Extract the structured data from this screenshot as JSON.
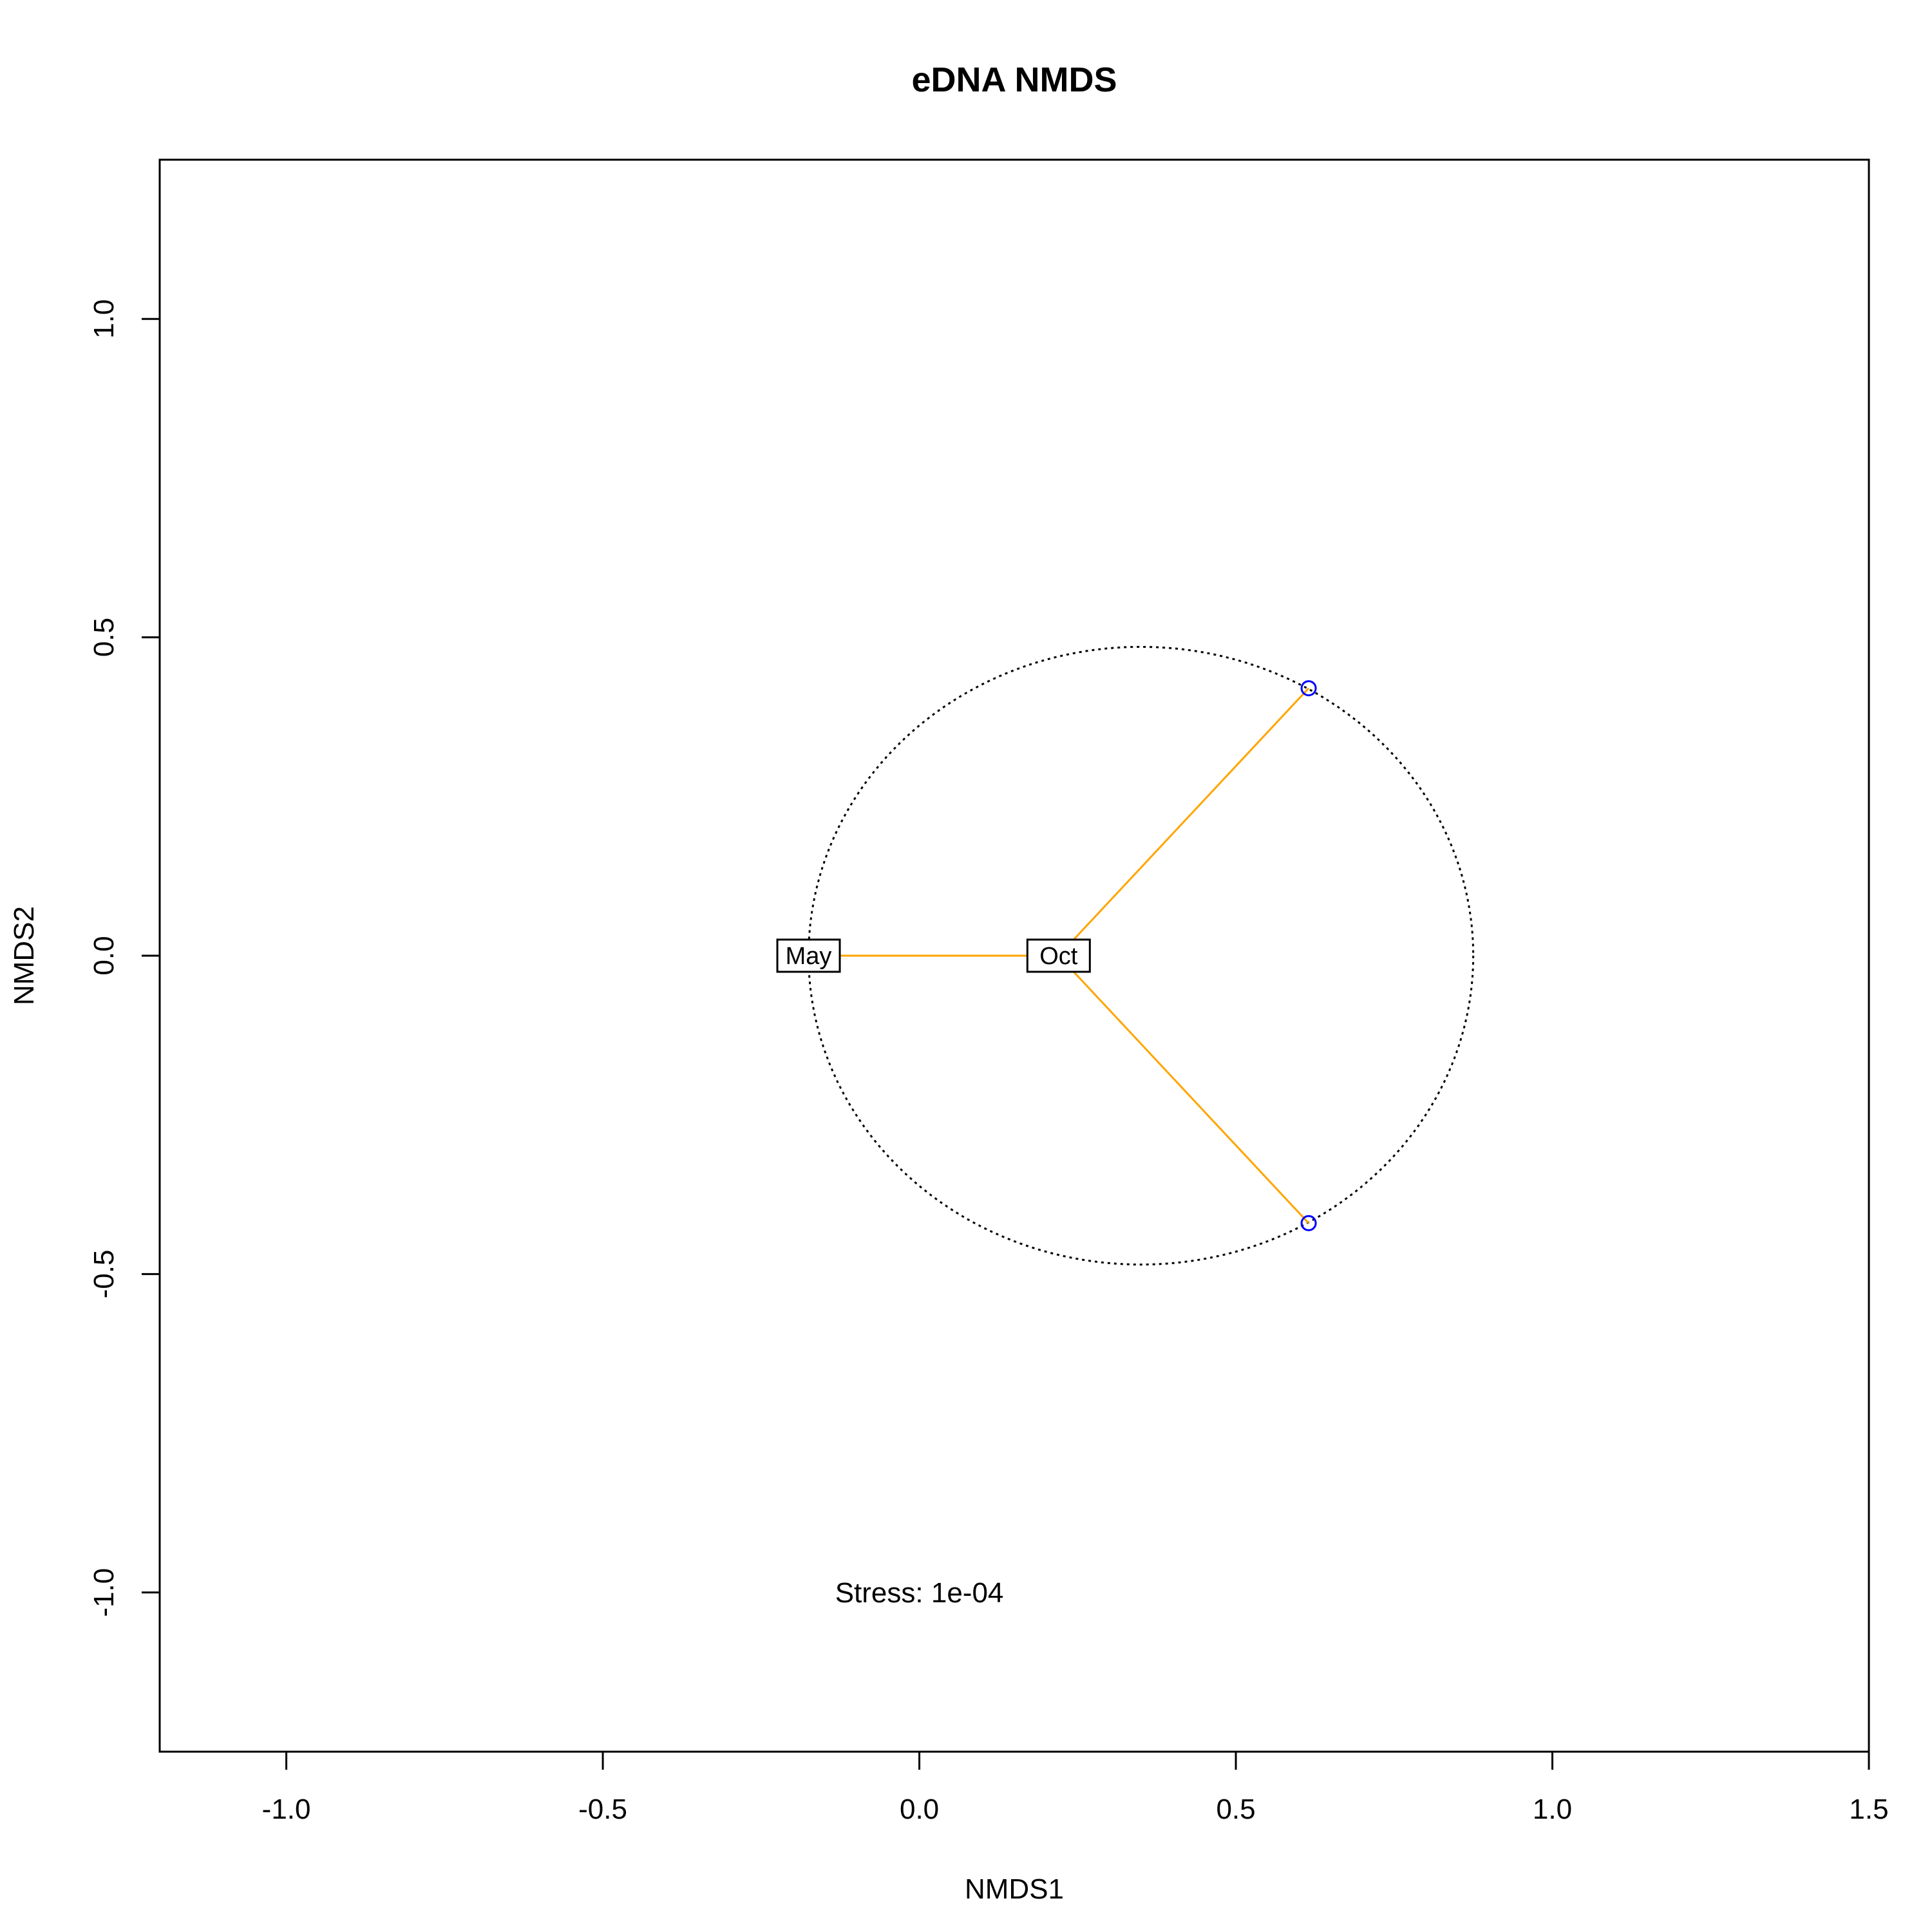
{
  "chart_data": {
    "type": "scatter",
    "title": "eDNA NMDS",
    "xlabel": "NMDS1",
    "ylabel": "NMDS2",
    "xlim": [
      -1.2,
      1.5
    ],
    "ylim": [
      -1.25,
      1.25
    ],
    "xticks": [
      -1.0,
      -0.5,
      0.0,
      0.5,
      1.0,
      1.5
    ],
    "xtick_labels": [
      "-1.0",
      "-0.5",
      "0.0",
      "0.5",
      "1.0",
      "1.5"
    ],
    "yticks": [
      -1.0,
      -0.5,
      0.0,
      0.5,
      1.0
    ],
    "ytick_labels": [
      "-1.0",
      "-0.5",
      "0.0",
      "0.5",
      "1.0"
    ],
    "grid": false,
    "points": [
      {
        "x": 0.615,
        "y": 0.42
      },
      {
        "x": 0.615,
        "y": -0.42
      }
    ],
    "point_color": "#0000ff",
    "centroids": [
      {
        "label": "May",
        "x": -0.175,
        "y": 0.0
      },
      {
        "label": "Oct",
        "x": 0.22,
        "y": 0.0
      }
    ],
    "spider_segments": [
      {
        "from": [
          -0.175,
          0.0
        ],
        "to": [
          0.22,
          0.0
        ]
      },
      {
        "from": [
          0.22,
          0.0
        ],
        "to": [
          0.615,
          0.42
        ]
      },
      {
        "from": [
          0.22,
          0.0
        ],
        "to": [
          0.615,
          -0.42
        ]
      }
    ],
    "spider_color": "#ffa500",
    "ellipse": {
      "cx": 0.35,
      "cy": 0.0,
      "rx": 0.525,
      "ry": 0.485,
      "style": "dotted"
    },
    "annotation": {
      "text": "Stress: 1e-04",
      "x": 0.0,
      "y": -1.0
    }
  }
}
